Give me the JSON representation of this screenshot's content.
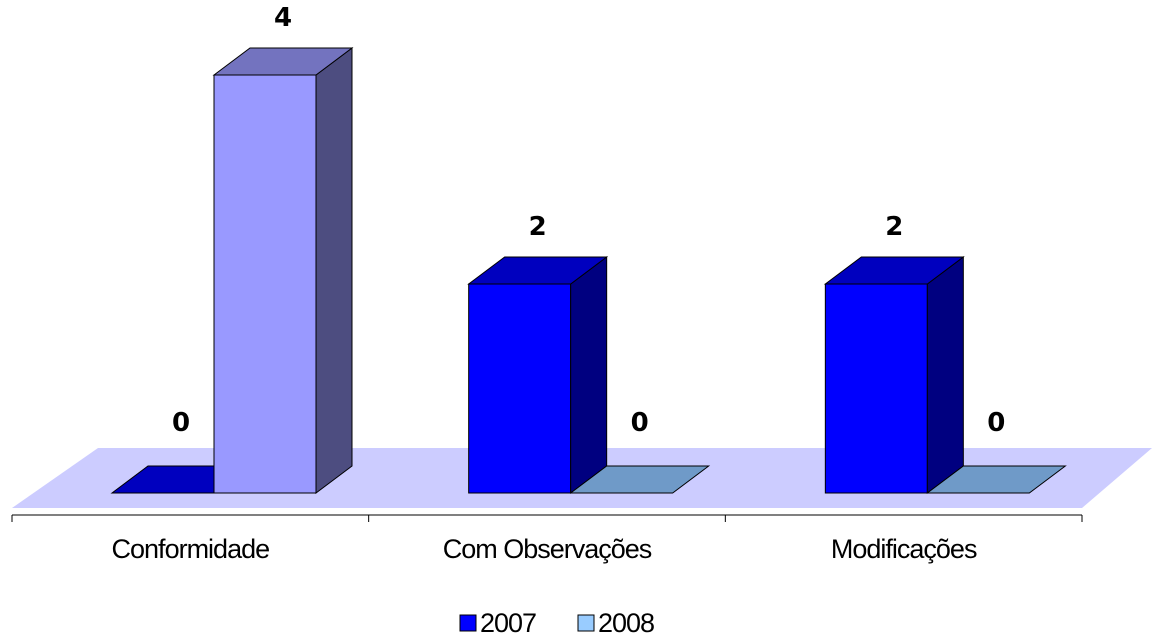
{
  "chart_data": {
    "type": "bar",
    "title": "",
    "xlabel": "",
    "ylabel": "",
    "categories": [
      "Conformidade",
      "Com Observações",
      "Modificações"
    ],
    "series": [
      {
        "name": "2007",
        "values": [
          0,
          2,
          2
        ],
        "color": "#0000ff"
      },
      {
        "name": "2008",
        "values": [
          4,
          0,
          0
        ],
        "color": "#9999ff"
      }
    ],
    "ylim": [
      0,
      4
    ],
    "grid": false,
    "legend_position": "bottom",
    "style": "3d-column",
    "floor_color": "#ccccff",
    "zero_bar_2008_color": "#6f9ac8"
  }
}
